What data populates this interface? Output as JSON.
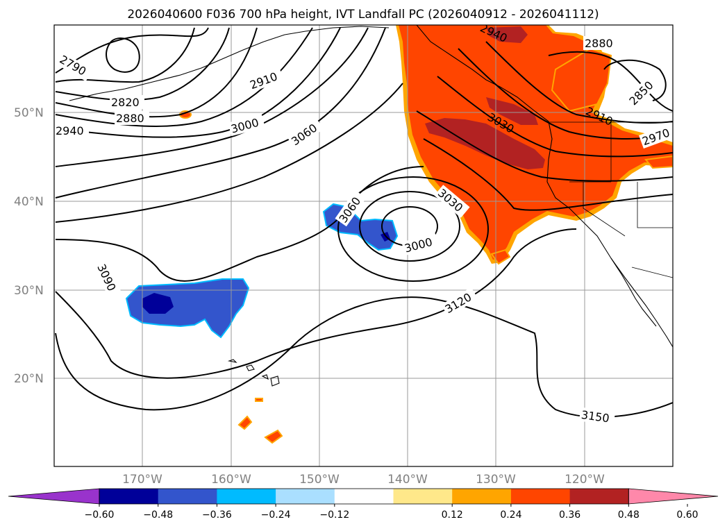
{
  "title": "2026040600 F036 700 hPa height, IVT Landfall PC (2026040912 - 2026041112)",
  "latitude_labels": [
    "50°N",
    "40°N",
    "30°N",
    "20°N"
  ],
  "longitude_labels": [
    "170°W",
    "160°W",
    "150°W",
    "140°W",
    "130°W",
    "120°W"
  ],
  "colorbar": {
    "tick_labels": [
      "−0.60",
      "−0.48",
      "−0.36",
      "−0.24",
      "−0.12",
      "0.12",
      "0.24",
      "0.36",
      "0.48",
      "0.60"
    ],
    "colors": [
      "#9933cc",
      "#000099",
      "#3355cc",
      "#00bbff",
      "#aadfff",
      "#ffffff",
      "#ffe88a",
      "#ffa500",
      "#ff4500",
      "#b22222",
      "#ff88aa"
    ]
  },
  "contour_labels": [
    "2790",
    "2820",
    "2880",
    "2940",
    "2910",
    "3000",
    "3060",
    "3060",
    "3030",
    "3000",
    "3090",
    "3120",
    "3150",
    "2940",
    "2880",
    "2850",
    "3030",
    "2910",
    "2970"
  ],
  "fill_colors": {
    "positive_high": "#ff4500",
    "positive_very_high": "#b22222",
    "positive_edge": "#ffa500",
    "negative_core": "#000099",
    "negative_mid": "#3355cc",
    "negative_edge": "#00bbff"
  }
}
